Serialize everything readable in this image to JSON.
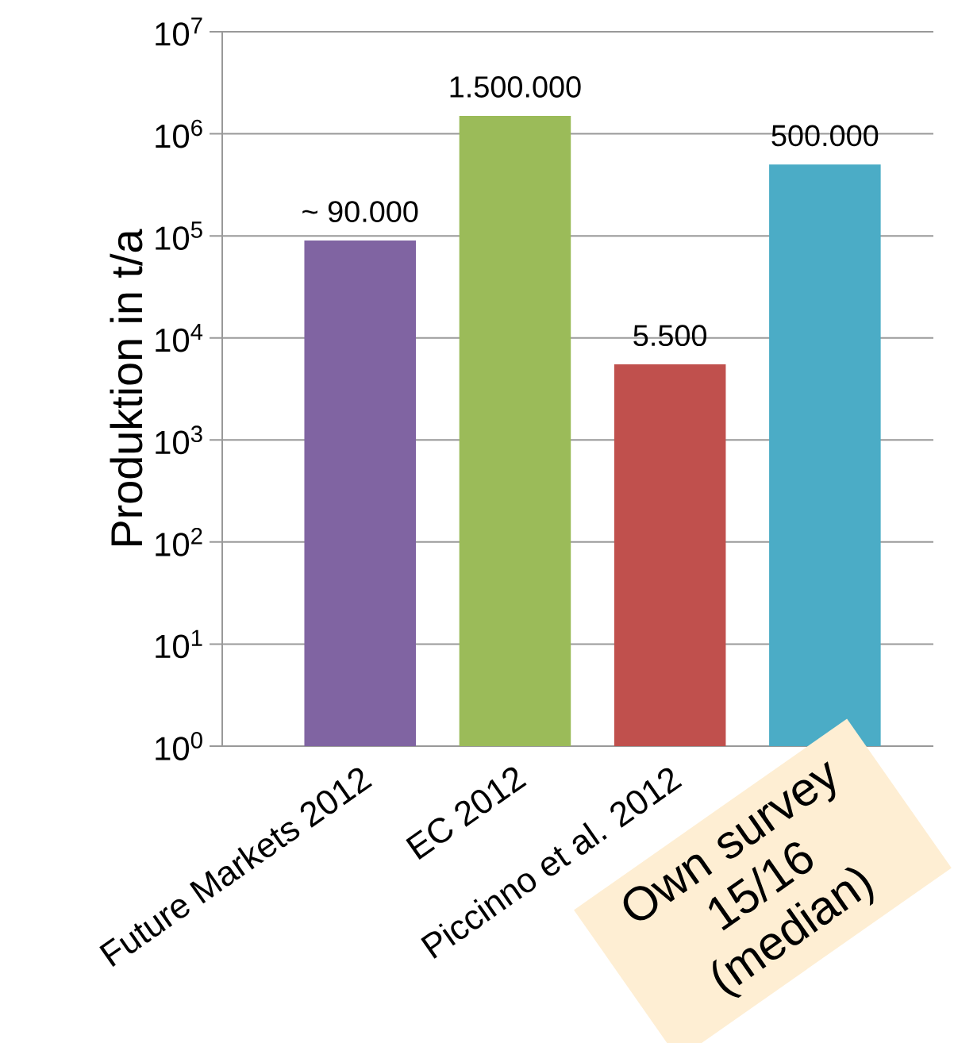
{
  "chart_data": {
    "type": "bar",
    "categories": [
      "Future Markets 2012",
      "EC 2012",
      "Piccinno et al. 2012",
      null
    ],
    "values": [
      90000,
      1500000,
      5500,
      500000
    ],
    "colors": [
      "#8064a2",
      "#9bbb59",
      "#c0504d",
      "#4bacc6"
    ],
    "value_labels": [
      "~ 90.000",
      "1.500.000",
      "5.500",
      "500.000"
    ],
    "ylabel": "Produktion in t/a",
    "log": "y",
    "ylim": [
      1,
      10000000
    ],
    "yticks": [
      {
        "value": 1,
        "label": "10$^{0}$"
      },
      {
        "value": 10,
        "label": "10$^{1}$"
      },
      {
        "value": 100,
        "label": "10$^{2}$"
      },
      {
        "value": 1000,
        "label": "10$^{3}$"
      },
      {
        "value": 10000,
        "label": "10$^{4}$"
      },
      {
        "value": 100000,
        "label": "10$^{5}$"
      },
      {
        "value": 1000000,
        "label": "10$^{6}$"
      },
      {
        "value": 10000000,
        "label": "10$^{7}$"
      }
    ],
    "grid": "y",
    "annotations": [
      "Own survey 15/16 (median)"
    ]
  }
}
